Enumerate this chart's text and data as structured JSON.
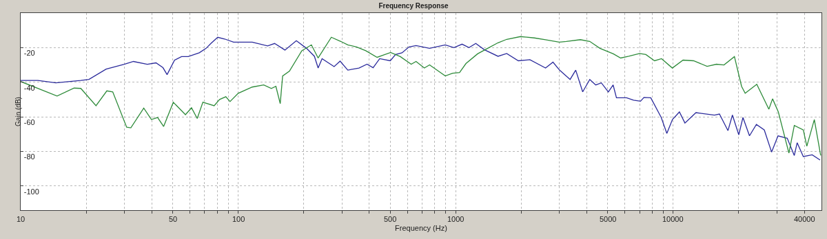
{
  "chart_data": {
    "type": "line",
    "title": "Frequency Response",
    "xlabel": "Frequency (Hz)",
    "ylabel": "Gain (dB)",
    "log": "x",
    "grid": true,
    "marker": "none",
    "line_style": "solid",
    "xlim": [
      10,
      48000
    ],
    "ylim": [
      -114,
      0
    ],
    "xticks": [
      10,
      {
        "value": 20,
        "label": null
      },
      {
        "value": 30,
        "label": null
      },
      {
        "value": 40,
        "label": null
      },
      50,
      {
        "value": 60,
        "label": null
      },
      {
        "value": 70,
        "label": null
      },
      {
        "value": 80,
        "label": null
      },
      {
        "value": 90,
        "label": null
      },
      100,
      {
        "value": 200,
        "label": null
      },
      {
        "value": 300,
        "label": null
      },
      {
        "value": 400,
        "label": null
      },
      500,
      {
        "value": 600,
        "label": null
      },
      {
        "value": 700,
        "label": null
      },
      {
        "value": 800,
        "label": null
      },
      {
        "value": 900,
        "label": null
      },
      1000,
      {
        "value": 2000,
        "label": null
      },
      {
        "value": 3000,
        "label": null
      },
      {
        "value": 4000,
        "label": null
      },
      5000,
      {
        "value": 6000,
        "label": null
      },
      {
        "value": 7000,
        "label": null
      },
      {
        "value": 8000,
        "label": null
      },
      {
        "value": 9000,
        "label": null
      },
      10000,
      {
        "value": 20000,
        "label": null
      },
      {
        "value": 30000,
        "label": null
      },
      40000
    ],
    "yticks": [
      -20,
      -40,
      -60,
      -80,
      -100
    ],
    "series": [
      {
        "color": "#2b2b9c",
        "x": [
          10,
          12,
          14.5,
          18.9,
          20.6,
          24.7,
          29.9,
          33,
          38.2,
          41.9,
          45.1,
          47.1,
          51,
          54.9,
          58.9,
          66.2,
          71.2,
          74.9,
          80.5,
          86.6,
          95.2,
          116,
          136.5,
          147,
          164,
          185,
          206,
          224,
          233,
          243,
          276,
          294,
          319,
          359,
          391,
          417,
          447,
          500,
          529,
          566,
          610,
          657,
          758,
          895,
          981,
          1069,
          1151,
          1236,
          1353,
          1564,
          1715,
          1940,
          2191,
          2587,
          2799,
          3000,
          3355,
          3560,
          3833,
          4131,
          4400,
          4670,
          5030,
          5290,
          5480,
          6100,
          6570,
          7070,
          7330,
          7880,
          8800,
          9340,
          9910,
          10670,
          11310,
          12710,
          15460,
          16300,
          17840,
          18700,
          20000,
          20900,
          22400,
          24100,
          26200,
          28300,
          30300,
          33400,
          36000,
          37100,
          39600,
          43500,
          47300
        ],
        "values": [
          -39,
          -39,
          -40.4,
          -39,
          -38.4,
          -32.4,
          -29.6,
          -28,
          -29.6,
          -28.8,
          -31.6,
          -35.6,
          -27.2,
          -25.2,
          -25.2,
          -23,
          -20.4,
          -17.6,
          -14,
          -15,
          -16.8,
          -16.8,
          -19,
          -17.6,
          -21.4,
          -16,
          -20.4,
          -25,
          -31.8,
          -26.4,
          -31,
          -27.8,
          -33,
          -31.8,
          -29.6,
          -31.6,
          -26.4,
          -27.6,
          -24,
          -23,
          -19.6,
          -18.8,
          -20.4,
          -18.4,
          -20,
          -18,
          -20,
          -17.6,
          -21.2,
          -25,
          -23.4,
          -27.6,
          -27,
          -31.8,
          -28.4,
          -33,
          -38.4,
          -33,
          -45.6,
          -38.4,
          -41.6,
          -40.4,
          -45.6,
          -41.6,
          -49,
          -49,
          -50.4,
          -51,
          -48.8,
          -49,
          -60.4,
          -69.6,
          -61.6,
          -57.2,
          -63.6,
          -57.6,
          -59,
          -58.4,
          -68,
          -59,
          -70.4,
          -60.4,
          -71,
          -64.4,
          -67.6,
          -80.4,
          -71,
          -72.4,
          -82.4,
          -75,
          -83,
          -82,
          -85
        ]
      },
      {
        "color": "#2e8b3a",
        "x": [
          10,
          14.7,
          17.6,
          18.9,
          22.2,
          24.9,
          26.5,
          30.7,
          32.1,
          36.8,
          39.9,
          42.6,
          45.4,
          50.3,
          57.2,
          61,
          64.8,
          68.8,
          77.5,
          82.1,
          87.7,
          91.7,
          100,
          116,
          131,
          142,
          149,
          156,
          160,
          172,
          196,
          217,
          233,
          268,
          296,
          319,
          350,
          386,
          435,
          463,
          502,
          556,
          624,
          657,
          717,
          758,
          832,
          895,
          967,
          1041,
          1114,
          1260,
          1383,
          1564,
          1715,
          1985,
          2300,
          2587,
          2992,
          3221,
          3740,
          4131,
          4600,
          5300,
          5730,
          6240,
          7000,
          7480,
          8200,
          8830,
          9900,
          11090,
          12400,
          14300,
          15800,
          17100,
          19100,
          20600,
          21400,
          24200,
          27500,
          28600,
          30400,
          34000,
          36000,
          39600,
          41100,
          44500,
          47600
        ],
        "values": [
          -39.6,
          -48,
          -43.4,
          -43.6,
          -53.6,
          -45,
          -45.6,
          -66,
          -66.4,
          -55,
          -61.6,
          -60.4,
          -65.6,
          -51.6,
          -58.8,
          -54.8,
          -61,
          -51.6,
          -53.6,
          -50,
          -48.4,
          -51.2,
          -46.4,
          -42.8,
          -41.6,
          -43.6,
          -42.4,
          -52.4,
          -36.4,
          -33.6,
          -21.8,
          -18.4,
          -26,
          -14,
          -16.4,
          -18.4,
          -19.6,
          -21.8,
          -25.6,
          -24.4,
          -22.8,
          -25.2,
          -29.6,
          -28,
          -31.8,
          -30,
          -33.6,
          -36.4,
          -34.8,
          -34.4,
          -29.2,
          -23.6,
          -20.8,
          -17.2,
          -15.2,
          -13.6,
          -14.4,
          -15.4,
          -16.8,
          -16.4,
          -15.4,
          -16.4,
          -20.4,
          -23.6,
          -26,
          -25,
          -23.4,
          -24,
          -27.6,
          -26.4,
          -31.8,
          -27.2,
          -27.6,
          -30.8,
          -29.6,
          -30,
          -25.2,
          -42.4,
          -46.4,
          -41.2,
          -55.6,
          -49.6,
          -57.2,
          -81,
          -65,
          -67.6,
          -77,
          -61.6,
          -82.4
        ]
      }
    ]
  }
}
